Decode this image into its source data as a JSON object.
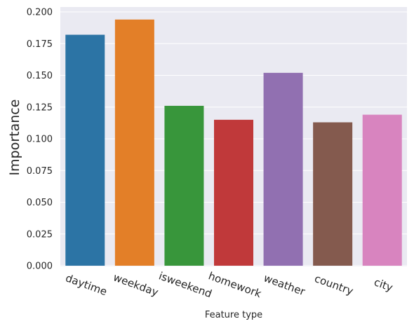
{
  "chart_data": {
    "type": "bar",
    "title": "",
    "xlabel": "Feature type",
    "ylabel": "Importance",
    "categories": [
      "daytime",
      "weekday",
      "isweekend",
      "homework",
      "weather",
      "country",
      "city"
    ],
    "values": [
      0.182,
      0.194,
      0.126,
      0.115,
      0.152,
      0.113,
      0.119
    ],
    "colors": [
      "#2c74a5",
      "#e37f28",
      "#38963b",
      "#c0393a",
      "#9170b1",
      "#845a4e",
      "#d884bf"
    ],
    "ylim": [
      0,
      0.2
    ],
    "yticks": [
      "0.000",
      "0.025",
      "0.050",
      "0.075",
      "0.100",
      "0.125",
      "0.150",
      "0.175",
      "0.200"
    ],
    "grid": true,
    "background": "#eaeaf2"
  }
}
